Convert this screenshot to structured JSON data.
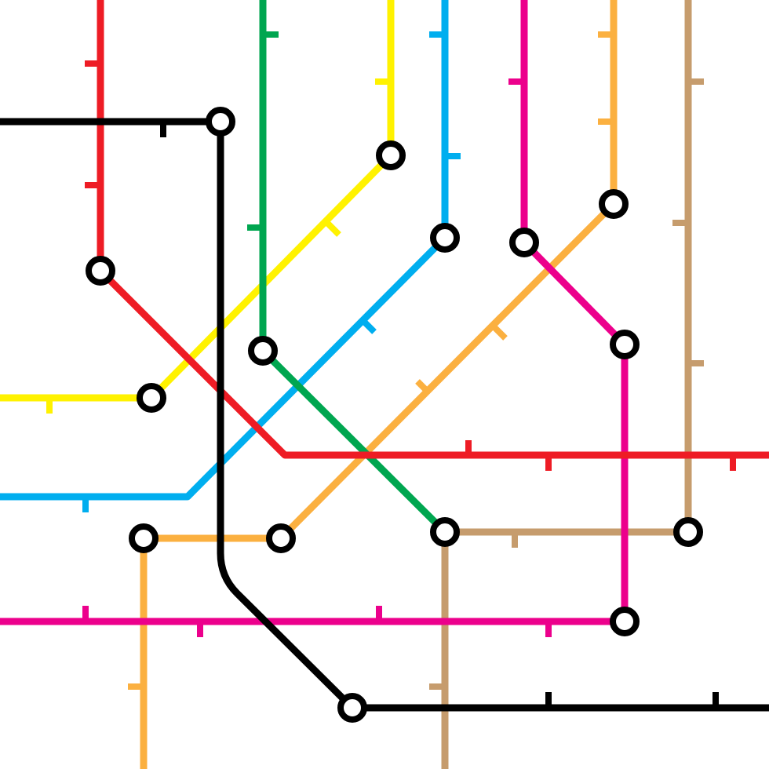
{
  "colors": {
    "background": "#ffffff",
    "station_fill": "#ffffff",
    "station_outline": "#000000"
  },
  "map": {
    "lines": [
      {
        "id": "red",
        "color": "#ee1c25"
      },
      {
        "id": "green",
        "color": "#00a650"
      },
      {
        "id": "yellow",
        "color": "#fff200"
      },
      {
        "id": "blue",
        "color": "#00aeef"
      },
      {
        "id": "magenta",
        "color": "#ec008c"
      },
      {
        "id": "orange",
        "color": "#fbb040"
      },
      {
        "id": "tan",
        "color": "#c69c6d"
      },
      {
        "id": "black",
        "color": "#000000"
      }
    ],
    "station_count": 15
  }
}
